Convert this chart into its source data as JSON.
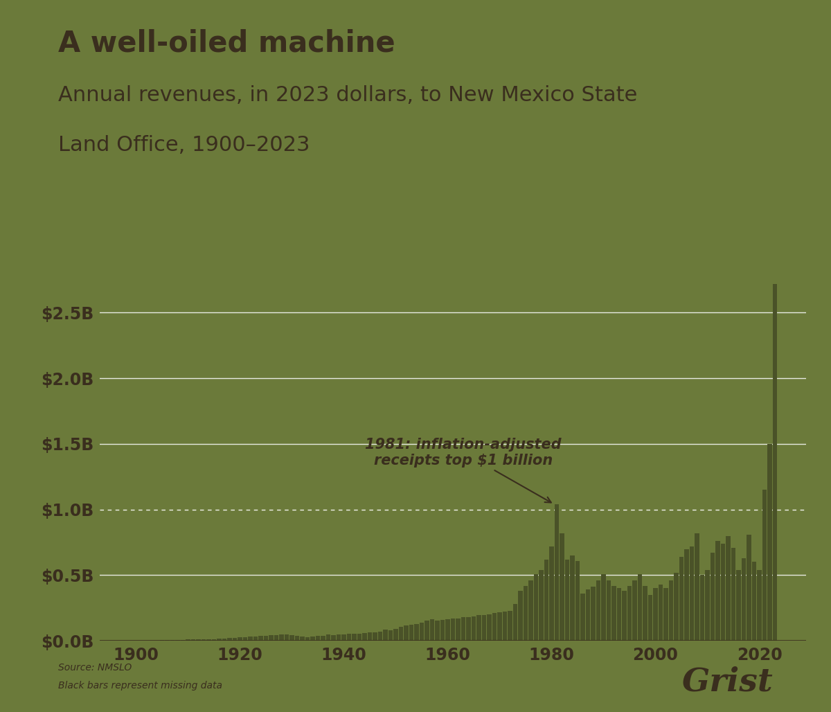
{
  "title": "A well-oiled machine",
  "subtitle_line1": "Annual revenues, in 2023 dollars, to New Mexico State",
  "subtitle_line2": "Land Office, 1900–2023",
  "source_text": "Source: NMSLO",
  "note_text": "Black bars represent missing data",
  "background_color": "#6b7a3a",
  "bar_color": "#4a5228",
  "text_color": "#3a2e1e",
  "grid_color": "#ffffff",
  "annotation_text": "1981: inflation-adjusted\nreceipts top $1 billion",
  "annotation_year": 1981,
  "annotation_value": 1.04,
  "ytick_labels": [
    "$0.0B",
    "$0.5B",
    "$1.0B",
    "$1.5B",
    "$2.0B",
    "$2.5B"
  ],
  "ytick_values": [
    0.0,
    0.5,
    1.0,
    1.5,
    2.0,
    2.5
  ],
  "xtick_values": [
    1900,
    1920,
    1940,
    1960,
    1980,
    2000,
    2020
  ],
  "years": [
    1900,
    1901,
    1902,
    1903,
    1904,
    1905,
    1906,
    1907,
    1908,
    1909,
    1910,
    1911,
    1912,
    1913,
    1914,
    1915,
    1916,
    1917,
    1918,
    1919,
    1920,
    1921,
    1922,
    1923,
    1924,
    1925,
    1926,
    1927,
    1928,
    1929,
    1930,
    1931,
    1932,
    1933,
    1934,
    1935,
    1936,
    1937,
    1938,
    1939,
    1940,
    1941,
    1942,
    1943,
    1944,
    1945,
    1946,
    1947,
    1948,
    1949,
    1950,
    1951,
    1952,
    1953,
    1954,
    1955,
    1956,
    1957,
    1958,
    1959,
    1960,
    1961,
    1962,
    1963,
    1964,
    1965,
    1966,
    1967,
    1968,
    1969,
    1970,
    1971,
    1972,
    1973,
    1974,
    1975,
    1976,
    1977,
    1978,
    1979,
    1980,
    1981,
    1982,
    1983,
    1984,
    1985,
    1986,
    1987,
    1988,
    1989,
    1990,
    1991,
    1992,
    1993,
    1994,
    1995,
    1996,
    1997,
    1998,
    1999,
    2000,
    2001,
    2002,
    2003,
    2004,
    2005,
    2006,
    2007,
    2008,
    2009,
    2010,
    2011,
    2012,
    2013,
    2014,
    2015,
    2016,
    2017,
    2018,
    2019,
    2020,
    2021,
    2022,
    2023
  ],
  "values": [
    0.002,
    0.002,
    0.002,
    0.002,
    0.003,
    0.004,
    0.005,
    0.006,
    0.007,
    0.008,
    0.009,
    0.01,
    0.011,
    0.012,
    0.013,
    0.014,
    0.016,
    0.018,
    0.02,
    0.022,
    0.03,
    0.028,
    0.032,
    0.034,
    0.036,
    0.038,
    0.042,
    0.044,
    0.046,
    0.048,
    0.044,
    0.038,
    0.032,
    0.03,
    0.032,
    0.036,
    0.04,
    0.048,
    0.044,
    0.046,
    0.05,
    0.054,
    0.055,
    0.056,
    0.06,
    0.062,
    0.065,
    0.072,
    0.085,
    0.078,
    0.09,
    0.105,
    0.115,
    0.125,
    0.128,
    0.138,
    0.152,
    0.165,
    0.155,
    0.158,
    0.165,
    0.168,
    0.172,
    0.178,
    0.182,
    0.188,
    0.195,
    0.198,
    0.2,
    0.21,
    0.215,
    0.22,
    0.23,
    0.28,
    0.38,
    0.42,
    0.46,
    0.51,
    0.54,
    0.62,
    0.72,
    1.04,
    0.82,
    0.62,
    0.65,
    0.61,
    0.36,
    0.39,
    0.415,
    0.46,
    0.51,
    0.46,
    0.42,
    0.4,
    0.38,
    0.42,
    0.46,
    0.51,
    0.42,
    0.35,
    0.4,
    0.43,
    0.4,
    0.46,
    0.52,
    0.64,
    0.7,
    0.72,
    0.82,
    0.5,
    0.54,
    0.67,
    0.76,
    0.74,
    0.8,
    0.71,
    0.54,
    0.63,
    0.81,
    0.6,
    0.54,
    1.15,
    1.5,
    2.72
  ]
}
